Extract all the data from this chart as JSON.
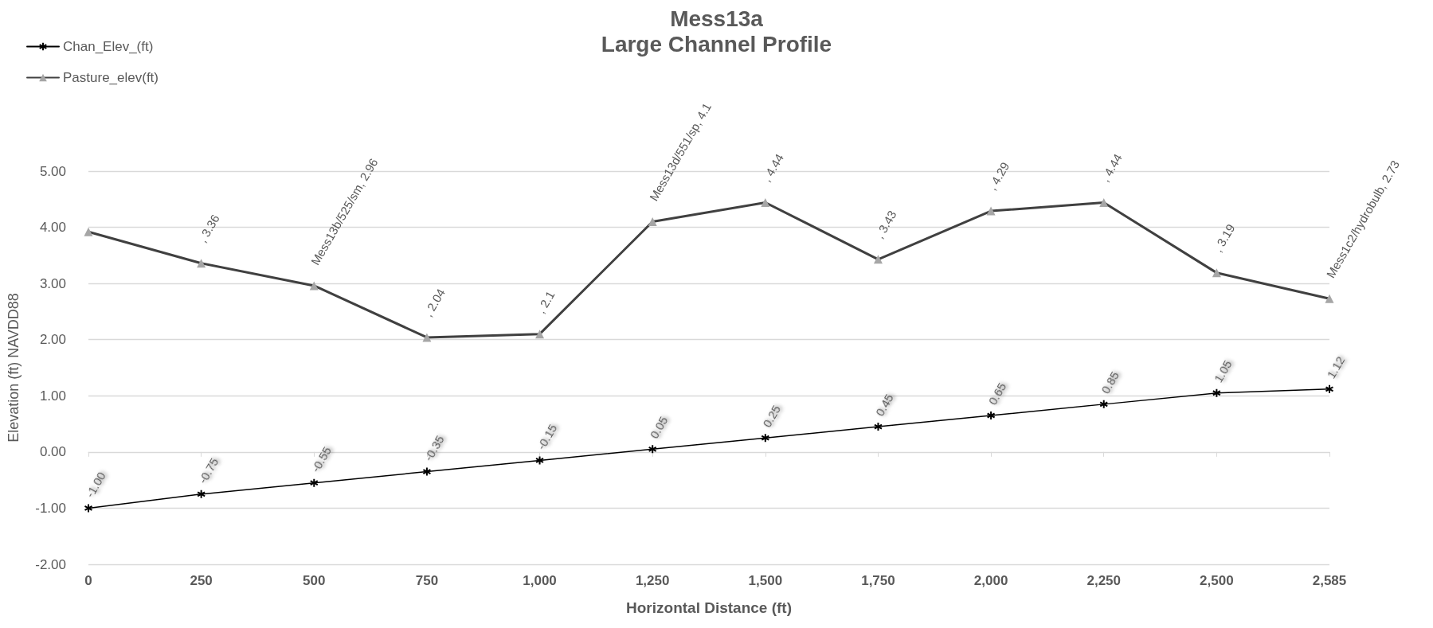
{
  "chart_data": {
    "type": "line",
    "title": "Mess13a",
    "subtitle": "Large Channel Profile",
    "xlabel": "Horizontal Distance (ft)",
    "ylabel": "Elevation (ft) NAVDD88",
    "categories": [
      "0",
      "250",
      "500",
      "750",
      "1,000",
      "1,250",
      "1,500",
      "1,750",
      "2,000",
      "2,250",
      "2,500",
      "2,585"
    ],
    "series": [
      {
        "name": "Chan_Elev_(ft)",
        "color": "#000000",
        "marker": "cross",
        "values": [
          -1.0,
          -0.75,
          -0.55,
          -0.35,
          -0.15,
          0.05,
          0.25,
          0.45,
          0.65,
          0.85,
          1.05,
          1.12
        ],
        "value_labels": [
          "-1.00",
          "-0.75",
          "-0.55",
          "-0.35",
          "-0.15",
          "0.05",
          "0.25",
          "0.45",
          "0.65",
          "0.85",
          "1.05",
          "1.12"
        ]
      },
      {
        "name": "Pasture_elev(ft)",
        "color": "#404040",
        "marker": "triangle",
        "values": [
          3.92,
          3.36,
          2.96,
          2.04,
          2.1,
          4.1,
          4.44,
          3.43,
          4.29,
          4.44,
          3.19,
          2.73
        ],
        "value_labels": [
          null,
          ", 3.36",
          "Mess13b/525/sm, 2.96",
          ", 2.04",
          ", 2.1",
          "Mess13d/551/sp, 4.1",
          ", 4.44",
          ", 3.43",
          ", 4.29",
          ", 4.44",
          ", 3.19",
          "Mess1c2/hydrobulb, 2.73"
        ]
      }
    ],
    "ylim": [
      -2,
      5
    ],
    "yticks": [
      {
        "value": -2,
        "label": "-2.00"
      },
      {
        "value": -1,
        "label": "-1.00"
      },
      {
        "value": 0,
        "label": "0.00"
      },
      {
        "value": 1,
        "label": "1.00"
      },
      {
        "value": 2,
        "label": "2.00"
      },
      {
        "value": 3,
        "label": "3.00"
      },
      {
        "value": 4,
        "label": "4.00"
      },
      {
        "value": 5,
        "label": "5.00"
      }
    ],
    "grid": "y",
    "legend": "top left"
  }
}
